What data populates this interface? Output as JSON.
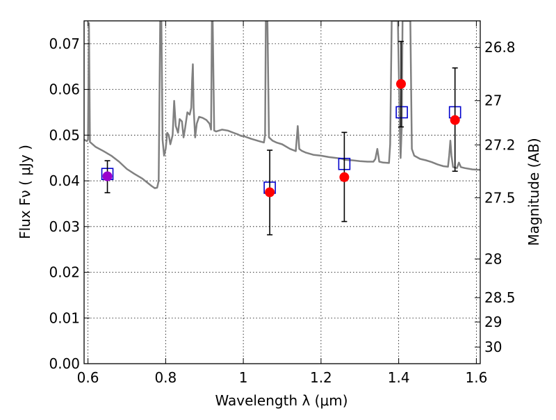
{
  "chart_data": {
    "type": "scatter",
    "xlabel": "Wavelength  λ (μm)",
    "ylabel": "Flux  Fν  ( μJy )",
    "ylabel_right": "Magnitude (AB)",
    "xlim": [
      0.59,
      1.61
    ],
    "ylim": [
      0.0,
      0.075
    ],
    "grid": true,
    "x_ticks": [
      {
        "value": 0.6,
        "label": "0.6"
      },
      {
        "value": 0.8,
        "label": "0.8"
      },
      {
        "value": 1.0,
        "label": "1"
      },
      {
        "value": 1.2,
        "label": "1.2"
      },
      {
        "value": 1.4,
        "label": "1.4"
      },
      {
        "value": 1.6,
        "label": "1.6"
      }
    ],
    "y_ticks": [
      {
        "value": 0.0,
        "label": "0.00"
      },
      {
        "value": 0.01,
        "label": "0.01"
      },
      {
        "value": 0.02,
        "label": "0.02"
      },
      {
        "value": 0.03,
        "label": "0.03"
      },
      {
        "value": 0.04,
        "label": "0.04"
      },
      {
        "value": 0.05,
        "label": "0.05"
      },
      {
        "value": 0.06,
        "label": "0.06"
      },
      {
        "value": 0.07,
        "label": "0.07"
      }
    ],
    "mag_ticks": [
      {
        "mag": 26.8,
        "label": "26.8"
      },
      {
        "mag": 27.0,
        "label": "27"
      },
      {
        "mag": 27.2,
        "label": "27.2"
      },
      {
        "mag": 27.5,
        "label": "27.5"
      },
      {
        "mag": 28.0,
        "label": "28"
      },
      {
        "mag": 28.5,
        "label": "28.5"
      },
      {
        "mag": 29.0,
        "label": "29"
      },
      {
        "mag": 30.0,
        "label": "30"
      }
    ],
    "series": [
      {
        "kind": "line",
        "color": "#808080",
        "points": [
          [
            0.59,
            0.049
          ],
          [
            0.597,
            0.0487
          ],
          [
            0.6,
            0.049
          ],
          [
            0.6025,
            0.0745
          ],
          [
            0.605,
            0.0485
          ],
          [
            0.62,
            0.0474
          ],
          [
            0.64,
            0.0465
          ],
          [
            0.66,
            0.0455
          ],
          [
            0.68,
            0.0442
          ],
          [
            0.7,
            0.0426
          ],
          [
            0.72,
            0.0415
          ],
          [
            0.74,
            0.0405
          ],
          [
            0.75,
            0.0398
          ],
          [
            0.765,
            0.0388
          ],
          [
            0.772,
            0.0384
          ],
          [
            0.778,
            0.0385
          ],
          [
            0.782,
            0.04
          ],
          [
            0.786,
            0.075
          ],
          [
            0.789,
            0.075
          ],
          [
            0.792,
            0.049
          ],
          [
            0.796,
            0.0455
          ],
          [
            0.8,
            0.047
          ],
          [
            0.804,
            0.0505
          ],
          [
            0.808,
            0.05
          ],
          [
            0.812,
            0.048
          ],
          [
            0.818,
            0.05
          ],
          [
            0.822,
            0.0575
          ],
          [
            0.826,
            0.052
          ],
          [
            0.832,
            0.0505
          ],
          [
            0.836,
            0.0535
          ],
          [
            0.842,
            0.053
          ],
          [
            0.846,
            0.0495
          ],
          [
            0.85,
            0.0515
          ],
          [
            0.856,
            0.055
          ],
          [
            0.862,
            0.0545
          ],
          [
            0.866,
            0.056
          ],
          [
            0.868,
            0.062
          ],
          [
            0.87,
            0.0655
          ],
          [
            0.872,
            0.056
          ],
          [
            0.876,
            0.0495
          ],
          [
            0.88,
            0.0525
          ],
          [
            0.886,
            0.054
          ],
          [
            0.895,
            0.0538
          ],
          [
            0.905,
            0.0533
          ],
          [
            0.913,
            0.0525
          ],
          [
            0.917,
            0.0512
          ],
          [
            0.919,
            0.075
          ],
          [
            0.921,
            0.075
          ],
          [
            0.925,
            0.051
          ],
          [
            0.93,
            0.0508
          ],
          [
            0.945,
            0.0512
          ],
          [
            0.96,
            0.051
          ],
          [
            0.975,
            0.0505
          ],
          [
            0.985,
            0.0502
          ],
          [
            0.995,
            0.0498
          ],
          [
            1.0,
            0.0498
          ],
          [
            1.02,
            0.0492
          ],
          [
            1.04,
            0.0487
          ],
          [
            1.053,
            0.0484
          ],
          [
            1.056,
            0.05
          ],
          [
            1.058,
            0.075
          ],
          [
            1.062,
            0.075
          ],
          [
            1.066,
            0.0495
          ],
          [
            1.075,
            0.0488
          ],
          [
            1.085,
            0.0484
          ],
          [
            1.1,
            0.048
          ],
          [
            1.12,
            0.047
          ],
          [
            1.135,
            0.0465
          ],
          [
            1.14,
            0.052
          ],
          [
            1.144,
            0.047
          ],
          [
            1.15,
            0.0466
          ],
          [
            1.16,
            0.0462
          ],
          [
            1.18,
            0.0457
          ],
          [
            1.2,
            0.0455
          ],
          [
            1.22,
            0.0452
          ],
          [
            1.24,
            0.045
          ],
          [
            1.255,
            0.0448
          ],
          [
            1.26,
            0.0446
          ],
          [
            1.28,
            0.0445
          ],
          [
            1.3,
            0.0443
          ],
          [
            1.32,
            0.0442
          ],
          [
            1.335,
            0.0442
          ],
          [
            1.34,
            0.0448
          ],
          [
            1.345,
            0.047
          ],
          [
            1.35,
            0.0442
          ],
          [
            1.36,
            0.044
          ],
          [
            1.375,
            0.0439
          ],
          [
            1.378,
            0.048
          ],
          [
            1.382,
            0.075
          ],
          [
            1.398,
            0.075
          ],
          [
            1.403,
            0.052
          ],
          [
            1.405,
            0.045
          ],
          [
            1.408,
            0.052
          ],
          [
            1.41,
            0.075
          ],
          [
            1.43,
            0.075
          ],
          [
            1.434,
            0.047
          ],
          [
            1.44,
            0.0455
          ],
          [
            1.455,
            0.0448
          ],
          [
            1.47,
            0.0445
          ],
          [
            1.485,
            0.0441
          ],
          [
            1.5,
            0.0436
          ],
          [
            1.515,
            0.0432
          ],
          [
            1.527,
            0.0431
          ],
          [
            1.53,
            0.0455
          ],
          [
            1.533,
            0.0488
          ],
          [
            1.536,
            0.0455
          ],
          [
            1.54,
            0.043
          ],
          [
            1.55,
            0.0428
          ],
          [
            1.555,
            0.044
          ],
          [
            1.56,
            0.043
          ],
          [
            1.57,
            0.0428
          ],
          [
            1.59,
            0.0425
          ],
          [
            1.61,
            0.0424
          ]
        ]
      },
      {
        "kind": "markers-square",
        "color": "#0000cc",
        "points": [
          [
            0.65,
            0.0415
          ],
          [
            1.068,
            0.0385
          ],
          [
            1.26,
            0.0437
          ],
          [
            1.408,
            0.055
          ],
          [
            1.545,
            0.055
          ]
        ]
      },
      {
        "kind": "markers-circle",
        "color": "#ff0000",
        "points": [
          {
            "x": 0.65,
            "y": 0.041,
            "err": [
              0.0374,
              0.0444
            ],
            "fill": "#9900cc"
          },
          {
            "x": 1.068,
            "y": 0.0375,
            "err": [
              0.0282,
              0.0467
            ]
          },
          {
            "x": 1.26,
            "y": 0.0408,
            "err": [
              0.0311,
              0.0506
            ]
          },
          {
            "x": 1.406,
            "y": 0.0612,
            "err": [
              0.0518,
              0.0705
            ]
          },
          {
            "x": 1.545,
            "y": 0.0533,
            "err": [
              0.0421,
              0.0647
            ]
          }
        ]
      }
    ]
  }
}
